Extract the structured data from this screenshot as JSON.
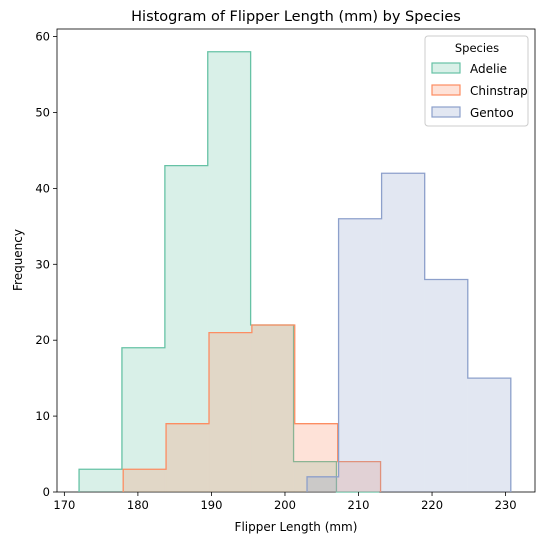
{
  "chart_data": {
    "type": "histogram",
    "title": "Histogram of Flipper Length (mm) by Species",
    "xlabel": "Flipper Length (mm)",
    "ylabel": "Frequency",
    "xlim": [
      169,
      234
    ],
    "ylim": [
      0,
      61
    ],
    "xticks": [
      170,
      180,
      190,
      200,
      210,
      220,
      230
    ],
    "yticks": [
      0,
      10,
      20,
      30,
      40,
      50,
      60
    ],
    "grid": false,
    "element": "step",
    "legend": {
      "title": "Species",
      "position": "top-right"
    },
    "series": [
      {
        "name": "Adelie",
        "color": "#66c2a5",
        "bin_edges": [
          172,
          177.83,
          183.67,
          189.5,
          195.33,
          201.17,
          207,
          212.83
        ],
        "counts": [
          3,
          19,
          43,
          58,
          22,
          4,
          0
        ]
      },
      {
        "name": "Chinstrap",
        "color": "#fc8d62",
        "bin_edges": [
          178,
          183.83,
          189.67,
          195.5,
          201.33,
          207.17,
          213
        ],
        "counts": [
          3,
          9,
          21,
          22,
          9,
          4
        ]
      },
      {
        "name": "Gentoo",
        "color": "#8da0cb",
        "bin_edges": [
          203,
          207.29,
          213.14,
          219,
          224.86,
          230.71
        ],
        "counts": [
          2,
          36,
          42,
          28,
          15
        ]
      }
    ]
  }
}
